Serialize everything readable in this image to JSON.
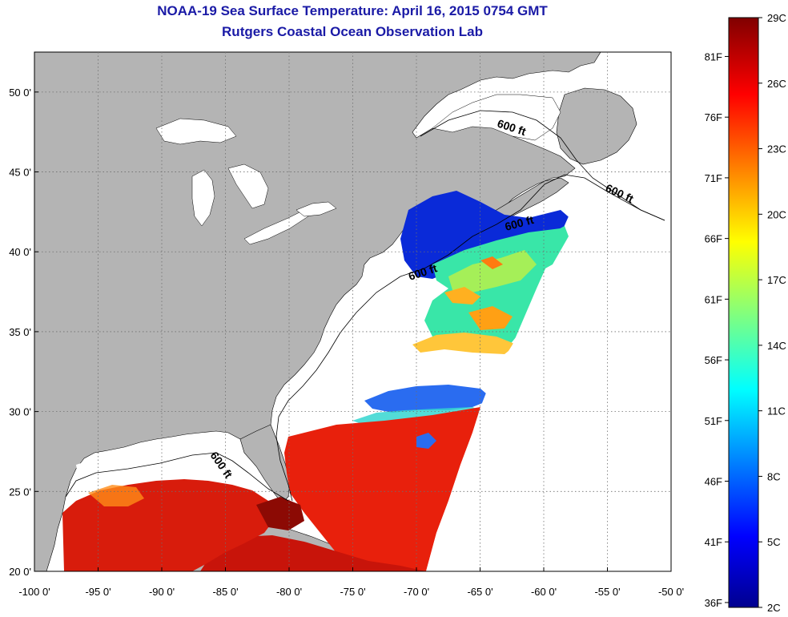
{
  "title": "NOAA-19 Sea Surface Temperature:  April 16, 2015 0754 GMT",
  "subtitle": "Rutgers Coastal Ocean Observation Lab",
  "map": {
    "lon_range": [
      -100,
      -50
    ],
    "lat_range": [
      20,
      52.5
    ],
    "lon_ticks": [
      "-100 0'",
      "-95 0'",
      "-90 0'",
      "-85 0'",
      "-80 0'",
      "-75 0'",
      "-70 0'",
      "-65 0'",
      "-60 0'",
      "-55 0'",
      "-50 0'"
    ],
    "lat_ticks": [
      "50 0'",
      "45 0'",
      "40 0'",
      "35 0'",
      "30 0'",
      "25 0'",
      "20 0'"
    ],
    "contour_labels": [
      "600 ft",
      "600 ft",
      "600 ft",
      "600 ft",
      "600 ft"
    ],
    "colors": {
      "land": "#b4b4b4",
      "no_data": "#ffffff",
      "grid": "#7a7a7a"
    }
  },
  "colorbar": {
    "celsius_labels": [
      "29C",
      "26C",
      "23C",
      "20C",
      "17C",
      "14C",
      "11C",
      "8C",
      "5C",
      "2C"
    ],
    "fahrenheit_labels": [
      "81F",
      "76F",
      "71F",
      "66F",
      "61F",
      "56F",
      "51F",
      "46F",
      "41F",
      "36F"
    ],
    "range_c": [
      2,
      29
    ],
    "colormap": [
      "#00008f",
      "#0000ff",
      "#00ffff",
      "#ffff00",
      "#ff0000",
      "#800000"
    ]
  }
}
